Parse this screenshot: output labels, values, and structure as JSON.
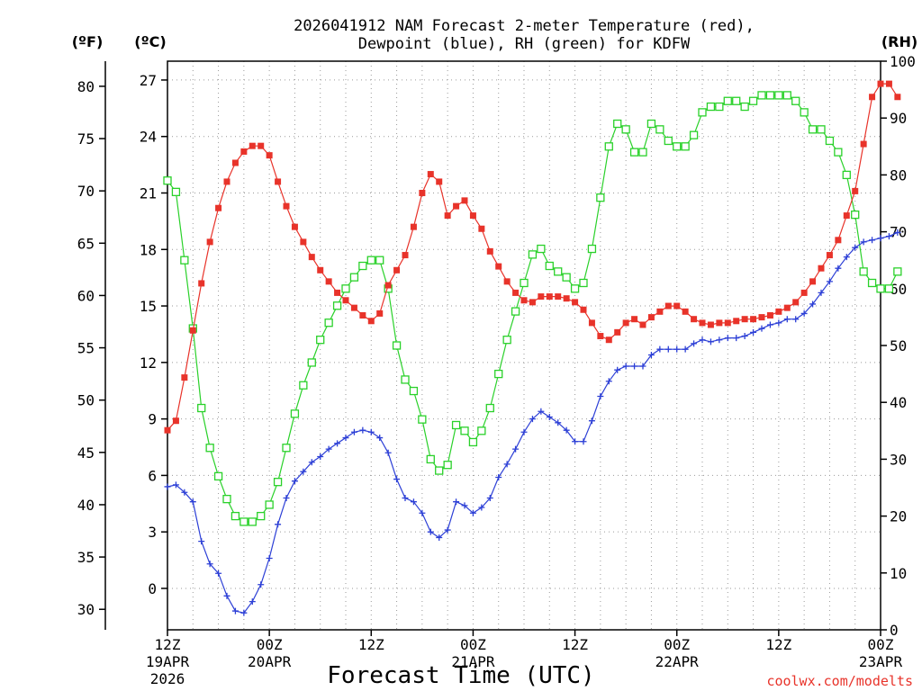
{
  "title_line1": "2026041912 NAM Forecast 2-meter Temperature (red),",
  "title_line2": "Dewpoint (blue), RH (green) for KDFW",
  "unit_f": "(ºF)",
  "unit_c": "(ºC)",
  "unit_rh": "(RH)",
  "credit": "coolwx.com/modelts",
  "chart_data": {
    "type": "line",
    "title": "2026041912 NAM Forecast 2-meter Temperature (red), Dewpoint (blue), RH (green) for KDFW",
    "xlabel": "Forecast Time (UTC)",
    "x_hours_range": [
      0,
      84
    ],
    "x_ticks": [
      {
        "h": 0,
        "l1": "12Z",
        "l2": "19APR",
        "l3": "2026"
      },
      {
        "h": 12,
        "l1": "00Z",
        "l2": "20APR",
        "l3": ""
      },
      {
        "h": 24,
        "l1": "12Z",
        "l2": "",
        "l3": ""
      },
      {
        "h": 36,
        "l1": "00Z",
        "l2": "21APR",
        "l3": ""
      },
      {
        "h": 48,
        "l1": "12Z",
        "l2": "",
        "l3": ""
      },
      {
        "h": 60,
        "l1": "00Z",
        "l2": "22APR",
        "l3": ""
      },
      {
        "h": 72,
        "l1": "12Z",
        "l2": "",
        "l3": ""
      },
      {
        "h": 84,
        "l1": "00Z",
        "l2": "23APR",
        "l3": ""
      }
    ],
    "y_celsius": {
      "range": [
        -2.2,
        28.0
      ],
      "ticks": [
        0,
        3,
        6,
        9,
        12,
        15,
        18,
        21,
        24,
        27
      ]
    },
    "y_fahrenheit": {
      "ticks": [
        30,
        35,
        40,
        45,
        50,
        55,
        60,
        65,
        70,
        75,
        80
      ]
    },
    "y_rh": {
      "range": [
        0,
        100
      ],
      "ticks": [
        0,
        10,
        20,
        30,
        40,
        50,
        60,
        70,
        80,
        90,
        100
      ]
    },
    "series": [
      {
        "name": "2-meter Temperature (°C)",
        "color": "#e8332a",
        "axis": "c",
        "marker": "square-filled",
        "values": [
          8.4,
          8.9,
          11.2,
          13.7,
          16.2,
          18.4,
          20.2,
          21.6,
          22.6,
          23.2,
          23.5,
          23.5,
          23.0,
          21.6,
          20.3,
          19.2,
          18.4,
          17.6,
          16.9,
          16.3,
          15.7,
          15.3,
          14.9,
          14.5,
          14.2,
          14.6,
          16.1,
          16.9,
          17.7,
          19.2,
          21.0,
          22.0,
          21.6,
          19.8,
          20.3,
          20.6,
          19.8,
          19.1,
          17.9,
          17.1,
          16.3,
          15.7,
          15.3,
          15.2,
          15.5,
          15.5,
          15.5,
          15.4,
          15.2,
          14.8,
          14.1,
          13.4,
          13.2,
          13.6,
          14.1,
          14.3,
          14.0,
          14.4,
          14.7,
          15.0,
          15.0,
          14.7,
          14.3,
          14.1,
          14.0,
          14.1,
          14.1,
          14.2,
          14.3,
          14.3,
          14.4,
          14.5,
          14.7,
          14.9,
          15.2,
          15.7,
          16.3,
          17.0,
          17.7,
          18.5,
          19.8,
          21.1,
          23.6,
          26.1,
          26.8,
          26.8,
          26.1
        ]
      },
      {
        "name": "Dewpoint (°C)",
        "color": "#2c3fd6",
        "axis": "c",
        "marker": "plus",
        "values": [
          5.4,
          5.5,
          5.1,
          4.6,
          2.5,
          1.3,
          0.8,
          -0.4,
          -1.2,
          -1.3,
          -0.7,
          0.2,
          1.6,
          3.4,
          4.8,
          5.7,
          6.2,
          6.7,
          7.0,
          7.4,
          7.7,
          8.0,
          8.3,
          8.4,
          8.3,
          8.0,
          7.2,
          5.8,
          4.8,
          4.6,
          4.0,
          3.0,
          2.7,
          3.1,
          4.6,
          4.4,
          4.0,
          4.3,
          4.8,
          5.9,
          6.6,
          7.4,
          8.3,
          9.0,
          9.4,
          9.1,
          8.8,
          8.4,
          7.8,
          7.8,
          8.9,
          10.2,
          11.0,
          11.6,
          11.8,
          11.8,
          11.8,
          12.4,
          12.7,
          12.7,
          12.7,
          12.7,
          13.0,
          13.2,
          13.1,
          13.2,
          13.3,
          13.3,
          13.4,
          13.6,
          13.8,
          14.0,
          14.1,
          14.3,
          14.3,
          14.6,
          15.1,
          15.7,
          16.3,
          17.0,
          17.6,
          18.1,
          18.4,
          18.5,
          18.6,
          18.7,
          18.9
        ]
      },
      {
        "name": "RH (%)",
        "color": "#2ad12a",
        "axis": "rh",
        "marker": "square-open",
        "values": [
          79,
          77,
          65,
          53,
          39,
          32,
          27,
          23,
          20,
          19,
          19,
          20,
          22,
          26,
          32,
          38,
          43,
          47,
          51,
          54,
          57,
          60,
          62,
          64,
          65,
          65,
          60,
          50,
          44,
          42,
          37,
          30,
          28,
          29,
          36,
          35,
          33,
          35,
          39,
          45,
          51,
          56,
          61,
          66,
          67,
          64,
          63,
          62,
          60,
          61,
          67,
          76,
          85,
          89,
          88,
          84,
          84,
          89,
          88,
          86,
          85,
          85,
          87,
          91,
          92,
          92,
          93,
          93,
          92,
          93,
          94,
          94,
          94,
          94,
          93,
          91,
          88,
          88,
          86,
          84,
          80,
          73,
          63,
          61,
          60,
          60,
          63
        ]
      }
    ]
  }
}
